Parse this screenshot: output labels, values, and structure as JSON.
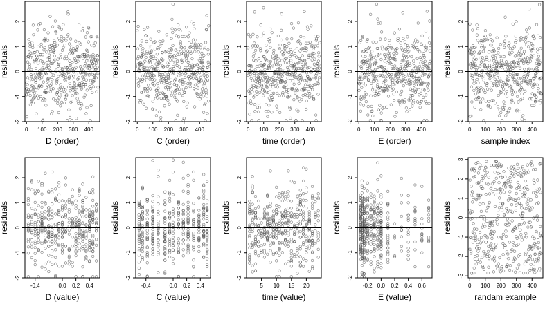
{
  "chart_data": [
    {
      "type": "scatter",
      "xlabel": "D (order)",
      "ylabel": "residuals",
      "xlim": [
        -10,
        470
      ],
      "ylim": [
        -2,
        2.8
      ],
      "xticks": [
        "0",
        "100",
        "200",
        "300",
        "400"
      ],
      "xtickvals": [
        0,
        100,
        200,
        300,
        400
      ],
      "yticks": [
        "-2",
        "-1",
        "0",
        "1",
        "2"
      ],
      "ytickvals": [
        -2,
        -1,
        0,
        1,
        2
      ],
      "hline": 0,
      "xgen": "index",
      "n": 460,
      "seed": 11,
      "spread": 1.0,
      "dist": "normal"
    },
    {
      "type": "scatter",
      "xlabel": "C (order)",
      "ylabel": "residuals",
      "xlim": [
        -10,
        470
      ],
      "ylim": [
        -2,
        2.8
      ],
      "xticks": [
        "0",
        "100",
        "200",
        "300",
        "400"
      ],
      "xtickvals": [
        0,
        100,
        200,
        300,
        400
      ],
      "yticks": [
        "-2",
        "-1",
        "0",
        "1",
        "2"
      ],
      "ytickvals": [
        -2,
        -1,
        0,
        1,
        2
      ],
      "hline": 0,
      "xgen": "index",
      "n": 460,
      "seed": 23,
      "spread": 1.0,
      "dist": "normal"
    },
    {
      "type": "scatter",
      "xlabel": "time (order)",
      "ylabel": "residuals",
      "xlim": [
        -10,
        470
      ],
      "ylim": [
        -2,
        2.8
      ],
      "xticks": [
        "0",
        "100",
        "200",
        "300",
        "400"
      ],
      "xtickvals": [
        0,
        100,
        200,
        300,
        400
      ],
      "yticks": [
        "-2",
        "-1",
        "0",
        "1",
        "2"
      ],
      "ytickvals": [
        -2,
        -1,
        0,
        1,
        2
      ],
      "hline": 0,
      "xgen": "index",
      "n": 460,
      "seed": 37,
      "spread": 1.0,
      "dist": "normal"
    },
    {
      "type": "scatter",
      "xlabel": "E (order)",
      "ylabel": "residuals",
      "xlim": [
        -10,
        470
      ],
      "ylim": [
        -2,
        2.8
      ],
      "xticks": [
        "0",
        "100",
        "200",
        "300",
        "400"
      ],
      "xtickvals": [
        0,
        100,
        200,
        300,
        400
      ],
      "yticks": [
        "-2",
        "-1",
        "0",
        "1",
        "2"
      ],
      "ytickvals": [
        -2,
        -1,
        0,
        1,
        2
      ],
      "hline": 0,
      "xgen": "index",
      "n": 460,
      "seed": 41,
      "spread": 1.0,
      "dist": "normal"
    },
    {
      "type": "scatter",
      "xlabel": "sample index",
      "ylabel": "residuals",
      "xlim": [
        -10,
        470
      ],
      "ylim": [
        -2,
        2.8
      ],
      "xticks": [
        "0",
        "100",
        "200",
        "300",
        "400"
      ],
      "xtickvals": [
        0,
        100,
        200,
        300,
        400
      ],
      "yticks": [
        "-2",
        "-1",
        "0",
        "1",
        "2"
      ],
      "ytickvals": [
        -2,
        -1,
        0,
        1,
        2
      ],
      "hline": 0,
      "xgen": "index",
      "n": 460,
      "seed": 53,
      "spread": 1.0,
      "dist": "normal"
    },
    {
      "type": "scatter",
      "xlabel": "D (value)",
      "ylabel": "residuals",
      "xlim": [
        -0.55,
        0.55
      ],
      "ylim": [
        -2,
        2.8
      ],
      "xticks": [
        "-0.4",
        "0.0",
        "0.2",
        "0.4"
      ],
      "xtickvals": [
        -0.4,
        0,
        0.2,
        0.4
      ],
      "yticks": [
        "-2",
        "-1",
        "0",
        "1",
        "2"
      ],
      "ytickvals": [
        -2,
        -1,
        0,
        1,
        2
      ],
      "hline": 0,
      "xgen": "levels",
      "levels": [
        -0.5,
        -0.45,
        -0.4,
        -0.35,
        -0.3,
        -0.25,
        -0.2,
        -0.15,
        -0.1,
        -0.05,
        0,
        0.05,
        0.1,
        0.15,
        0.2,
        0.25,
        0.3,
        0.35,
        0.4,
        0.45,
        0.5
      ],
      "n": 460,
      "seed": 61,
      "spread": 1.0,
      "dist": "normal"
    },
    {
      "type": "scatter",
      "xlabel": "C (value)",
      "ylabel": "residuals",
      "xlim": [
        -0.55,
        0.55
      ],
      "ylim": [
        -2,
        2.8
      ],
      "xticks": [
        "-0.4",
        "0.0",
        "0.2",
        "0.4"
      ],
      "xtickvals": [
        -0.4,
        0,
        0.2,
        0.4
      ],
      "yticks": [
        "-2",
        "-1",
        "0",
        "1",
        "2"
      ],
      "ytickvals": [
        -2,
        -1,
        0,
        1,
        2
      ],
      "hline": 0,
      "xgen": "levels",
      "levels": [
        -0.5,
        -0.45,
        -0.38,
        -0.3,
        -0.22,
        -0.12,
        -0.05,
        0,
        0.08,
        0.15,
        0.22,
        0.3,
        0.38,
        0.45,
        0.5
      ],
      "n": 460,
      "seed": 67,
      "spread": 1.0,
      "dist": "normal"
    },
    {
      "type": "scatter",
      "xlabel": "time (value)",
      "ylabel": "residuals",
      "xlim": [
        0,
        25
      ],
      "ylim": [
        -2,
        2.8
      ],
      "xticks": [
        "5",
        "10",
        "15",
        "20"
      ],
      "xtickvals": [
        5,
        10,
        15,
        20
      ],
      "yticks": [
        "-2",
        "-1",
        "0",
        "1",
        "2"
      ],
      "ytickvals": [
        -2,
        -1,
        0,
        1,
        2
      ],
      "hline": 0,
      "xgen": "levels",
      "levels": [
        1,
        2,
        3,
        4,
        5,
        6,
        7,
        8,
        9,
        10,
        11,
        12,
        13,
        14,
        15,
        16,
        17,
        18,
        19,
        20,
        21,
        22,
        23,
        24
      ],
      "n": 460,
      "seed": 71,
      "spread": 1.0,
      "dist": "normal"
    },
    {
      "type": "scatter",
      "xlabel": "E (value)",
      "ylabel": "residuals",
      "xlim": [
        -0.35,
        0.75
      ],
      "ylim": [
        -2,
        2.8
      ],
      "xticks": [
        "-0.2",
        "0.0",
        "0.2",
        "0.4",
        "0.6"
      ],
      "xtickvals": [
        -0.2,
        0,
        0.2,
        0.4,
        0.6
      ],
      "yticks": [
        "-2",
        "-1",
        "0",
        "1",
        "2"
      ],
      "ytickvals": [
        -2,
        -1,
        0,
        1,
        2
      ],
      "hline": 0,
      "xgen": "skewed",
      "levels": [
        -0.3,
        -0.28,
        -0.25,
        -0.2,
        -0.15,
        -0.1,
        -0.05,
        0,
        0.1,
        0.2,
        0.3,
        0.4,
        0.5,
        0.6,
        0.7
      ],
      "weights": [
        6,
        6,
        5,
        3,
        3,
        3,
        3,
        6,
        2,
        1,
        1,
        1,
        1,
        1,
        1
      ],
      "n": 460,
      "seed": 83,
      "spread": 1.0,
      "dist": "normal"
    },
    {
      "type": "scatter",
      "xlabel": "randam example",
      "ylabel": "residuals",
      "xlim": [
        -10,
        470
      ],
      "ylim": [
        -3.1,
        3.1
      ],
      "xticks": [
        "0",
        "100",
        "200",
        "300",
        "400"
      ],
      "xtickvals": [
        0,
        100,
        200,
        300,
        400
      ],
      "yticks": [
        "-3",
        "-2",
        "-1",
        "0",
        "1",
        "2",
        "3"
      ],
      "ytickvals": [
        -3,
        -2,
        -1,
        0,
        1,
        2,
        3
      ],
      "hline": 0,
      "xgen": "index",
      "n": 460,
      "seed": 97,
      "spread": 1.0,
      "dist": "uniform"
    }
  ]
}
